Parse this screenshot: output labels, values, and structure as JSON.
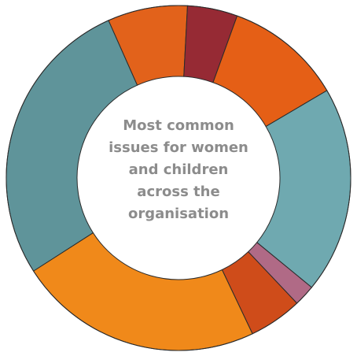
{
  "chart_data": {
    "type": "donut",
    "title": "Most common issues for women and children across the organisation",
    "values": [
      7.5,
      4.7,
      11,
      19.4,
      2,
      5,
      23,
      27.4
    ],
    "colors": [
      "#e2621b",
      "#962a34",
      "#e55f16",
      "#6fa9b0",
      "#b06a86",
      "#cf4c1a",
      "#f0891a",
      "#5f949a"
    ],
    "start_angle": -24
  }
}
